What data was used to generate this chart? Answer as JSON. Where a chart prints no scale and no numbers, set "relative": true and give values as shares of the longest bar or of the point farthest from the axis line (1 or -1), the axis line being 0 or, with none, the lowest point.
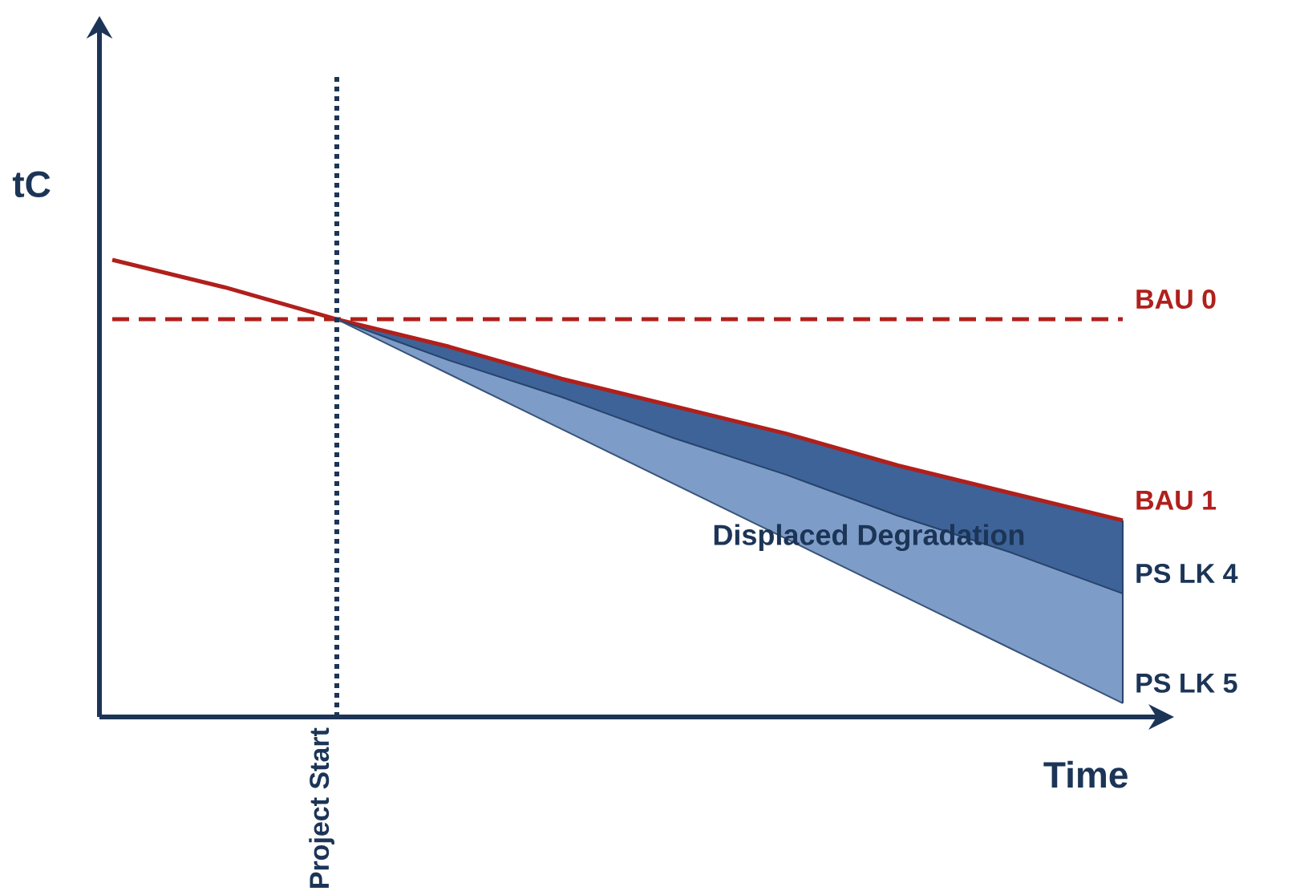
{
  "chart_data": {
    "type": "line",
    "relative": true,
    "xlabel": "Time",
    "ylabel": "tC",
    "categories": [
      null,
      null,
      null,
      null,
      null,
      null,
      null,
      null,
      null,
      null
    ],
    "series": [
      {
        "name": "BAU 0",
        "color": "#b0201c",
        "line_style": "dashed",
        "values": [
          0.87,
          0.87,
          0.87,
          0.87,
          0.87,
          0.87,
          0.87,
          0.87,
          0.87,
          0.87
        ]
      },
      {
        "name": "BAU 1",
        "color": "#b0201c",
        "values": [
          1.0,
          0.94,
          0.87,
          0.81,
          0.74,
          0.68,
          0.62,
          0.55,
          0.49,
          0.43
        ]
      },
      {
        "name": "PS LK 4",
        "color": "#26436b",
        "values": [
          null,
          null,
          0.87,
          0.78,
          0.7,
          0.61,
          0.53,
          0.44,
          0.36,
          0.27
        ]
      },
      {
        "name": "PS LK 5",
        "color": "#395479",
        "values": [
          null,
          null,
          0.87,
          0.75,
          0.63,
          0.51,
          0.39,
          0.27,
          0.15,
          0.03
        ]
      }
    ],
    "annotations": [
      "Displaced Degradation",
      "Project Start"
    ]
  }
}
